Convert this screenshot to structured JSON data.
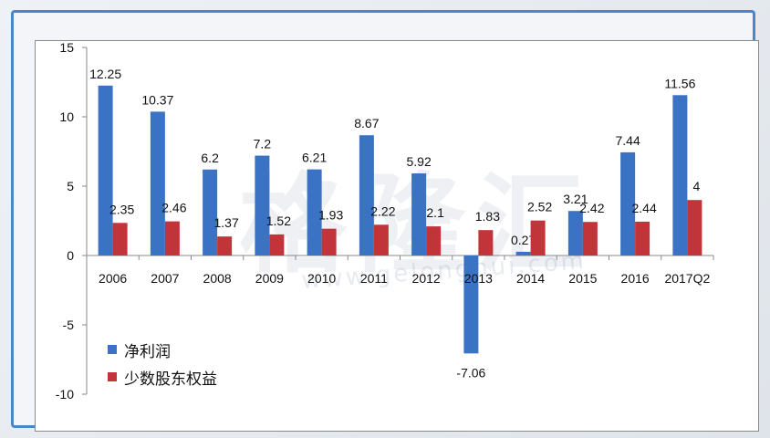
{
  "watermark": {
    "text": "格隆汇",
    "subtext": "www.gelonghui.com"
  },
  "colors": {
    "series1": "#3a73c4",
    "series2": "#c0343a",
    "frame": "#4a86c8"
  },
  "chart_data": {
    "type": "bar",
    "title": "",
    "xlabel": "",
    "ylabel": "",
    "ylim": [
      -10,
      15
    ],
    "yticks": [
      15,
      10,
      5,
      0,
      -5,
      -10
    ],
    "grid": false,
    "legend_position": "bottom-left",
    "categories": [
      "2006",
      "2007",
      "2008",
      "2009",
      "2010",
      "2011",
      "2012",
      "2013",
      "2014",
      "2015",
      "2016",
      "2017Q2"
    ],
    "series": [
      {
        "name": "净利润",
        "values": [
          12.25,
          10.37,
          6.2,
          7.2,
          6.21,
          8.67,
          5.92,
          -7.06,
          0.27,
          3.21,
          7.44,
          11.56
        ],
        "labels": [
          "12.25",
          "10.37",
          "6.2",
          "7.2",
          "6.21",
          "8.67",
          "5.92",
          "-7.06",
          "0.27",
          "3.21",
          "7.44",
          "11.56"
        ]
      },
      {
        "name": "少数股东权益",
        "values": [
          2.35,
          2.46,
          1.37,
          1.52,
          1.93,
          2.22,
          2.1,
          1.83,
          2.52,
          2.42,
          2.44,
          4
        ],
        "labels": [
          "2.35",
          "2.46",
          "1.37",
          "1.52",
          "1.93",
          "2.22",
          "2.1",
          "1.83",
          "2.52",
          "2.42",
          "2.44",
          "4"
        ]
      }
    ]
  }
}
